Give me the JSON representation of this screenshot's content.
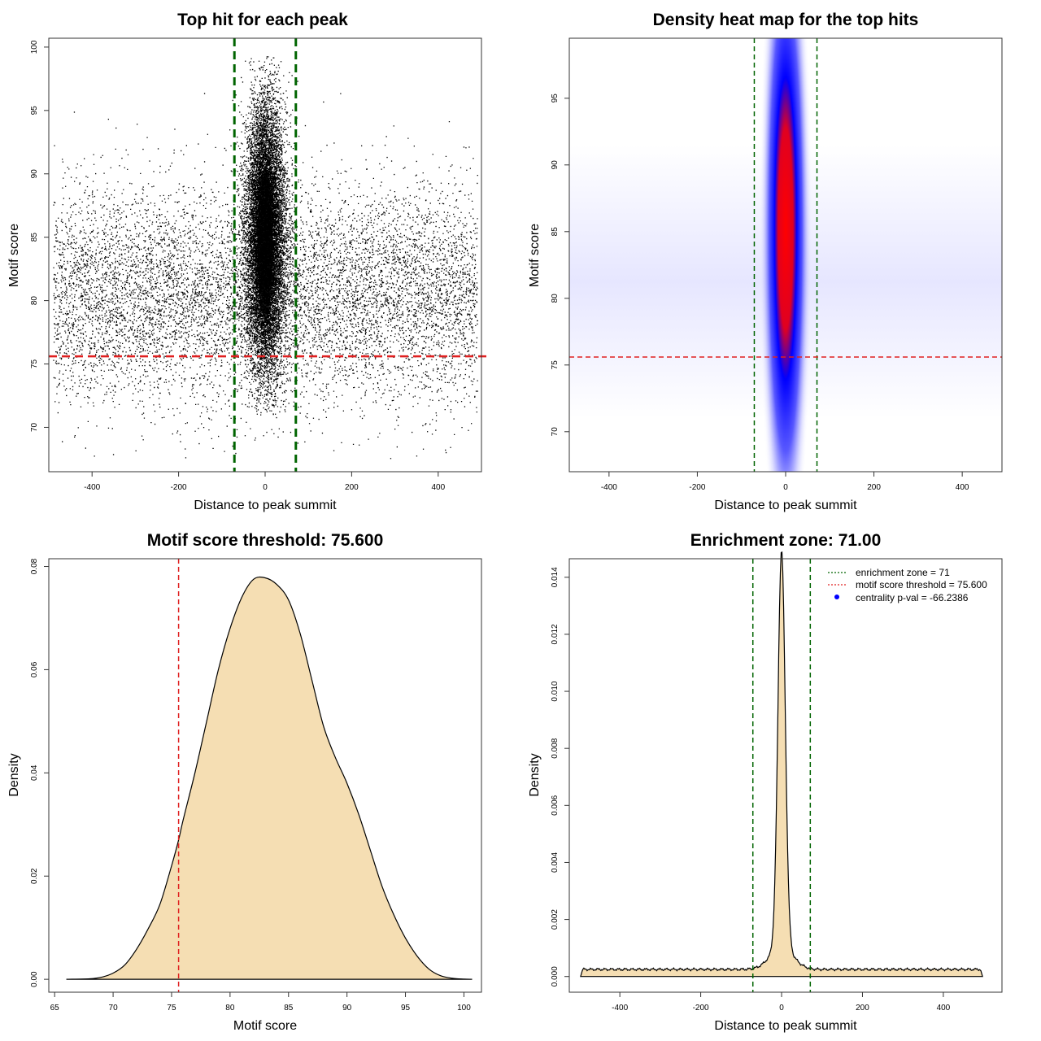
{
  "chart_data": [
    {
      "type": "scatter",
      "title": "Top hit for each peak",
      "xlabel": "Distance to peak summit",
      "ylabel": "Motif score",
      "xlim": [
        -500,
        500
      ],
      "ylim": [
        66.5,
        100.7
      ],
      "xticks": [
        -400,
        -200,
        0,
        200,
        400
      ],
      "yticks": [
        70,
        75,
        80,
        85,
        90,
        95,
        100
      ],
      "background": {
        "x_range": [
          -490,
          490
        ],
        "score_center": 80.5,
        "score_sd": 4.2
      },
      "central": {
        "x_center": 0,
        "x_sd": 22,
        "score_center": 85,
        "score_sd": 5.2
      },
      "vlines": [
        -71,
        71
      ],
      "hline": 75.6,
      "point_color": "#000000",
      "vline_color": "#006400",
      "hline_color": "#e02020"
    },
    {
      "type": "heatmap",
      "title": "Density heat map for the top hits",
      "xlabel": "Distance to peak summit",
      "ylabel": "Motif score",
      "xlim": [
        -490,
        490
      ],
      "ylim": [
        67,
        99.5
      ],
      "xticks": [
        -400,
        -200,
        0,
        200,
        400
      ],
      "yticks": [
        70,
        75,
        80,
        85,
        90,
        95
      ],
      "hotspot": {
        "x": 0,
        "y": 85
      },
      "color_scale": [
        "#ffffff",
        "#0000ff",
        "#ff0000"
      ],
      "vlines": [
        -71,
        71
      ],
      "hline": 75.6,
      "vline_color": "#006400",
      "hline_color": "#e02020"
    },
    {
      "type": "area",
      "title": "Motif score threshold: 75.600",
      "xlabel": "Motif score",
      "ylabel": "Density",
      "xlim": [
        64.5,
        101.5
      ],
      "ylim": [
        -0.0025,
        0.0815
      ],
      "xticks": [
        65,
        70,
        75,
        80,
        85,
        90,
        95,
        100
      ],
      "yticks": [
        0.0,
        0.02,
        0.04,
        0.06,
        0.08
      ],
      "ytick_labels": [
        "0.00",
        "0.02",
        "0.04",
        "0.06",
        "0.08"
      ],
      "x": [
        66,
        68,
        69,
        70,
        71,
        72,
        73,
        74,
        75,
        75.6,
        76,
        77,
        78,
        79,
        80,
        81,
        82,
        83,
        84,
        85,
        86,
        87,
        88,
        89,
        90,
        91,
        92,
        93,
        94,
        95,
        96,
        97,
        98,
        99,
        100,
        100.7
      ],
      "y": [
        0,
        0.0001,
        0.0004,
        0.0012,
        0.0028,
        0.0058,
        0.0098,
        0.0145,
        0.022,
        0.027,
        0.031,
        0.04,
        0.05,
        0.06,
        0.068,
        0.074,
        0.0775,
        0.0778,
        0.0765,
        0.0735,
        0.067,
        0.058,
        0.049,
        0.043,
        0.038,
        0.032,
        0.025,
        0.018,
        0.0125,
        0.008,
        0.0045,
        0.002,
        0.0007,
        0.0002,
        3e-05,
        0
      ],
      "fill": "#f5deb3",
      "vline": 75.6,
      "vline_color": "#e02020"
    },
    {
      "type": "area",
      "title": "Enrichment zone: 71.00",
      "xlabel": "Distance to peak summit",
      "ylabel": "Density",
      "xlim": [
        -525,
        545
      ],
      "ylim": [
        -0.00055,
        0.01465
      ],
      "xticks": [
        -400,
        -200,
        0,
        200,
        400
      ],
      "yticks": [
        0.0,
        0.002,
        0.004,
        0.006,
        0.008,
        0.01,
        0.012,
        0.014
      ],
      "ytick_labels": [
        "0.000",
        "0.002",
        "0.004",
        "0.006",
        "0.008",
        "0.010",
        "0.012",
        "0.014"
      ],
      "baseline": 0.00025,
      "peak_center": 0,
      "peak_height": 0.0139,
      "peak_width": 9,
      "shoulder_height": 0.0008,
      "shoulder_width": 28,
      "x_range": [
        -497,
        497
      ],
      "fill": "#f5deb3",
      "vlines": [
        -71,
        71
      ],
      "vline_color": "#006400",
      "legend": {
        "position": "top-right",
        "entries": [
          {
            "label": "enrichment zone = 71",
            "style": "dotted",
            "color": "#006400"
          },
          {
            "label": "motif score threshold = 75.600",
            "style": "dotted",
            "color": "#e02020"
          },
          {
            "label": "centrality p-val = -66.2386",
            "style": "point",
            "color": "#0000ff"
          }
        ]
      }
    }
  ]
}
